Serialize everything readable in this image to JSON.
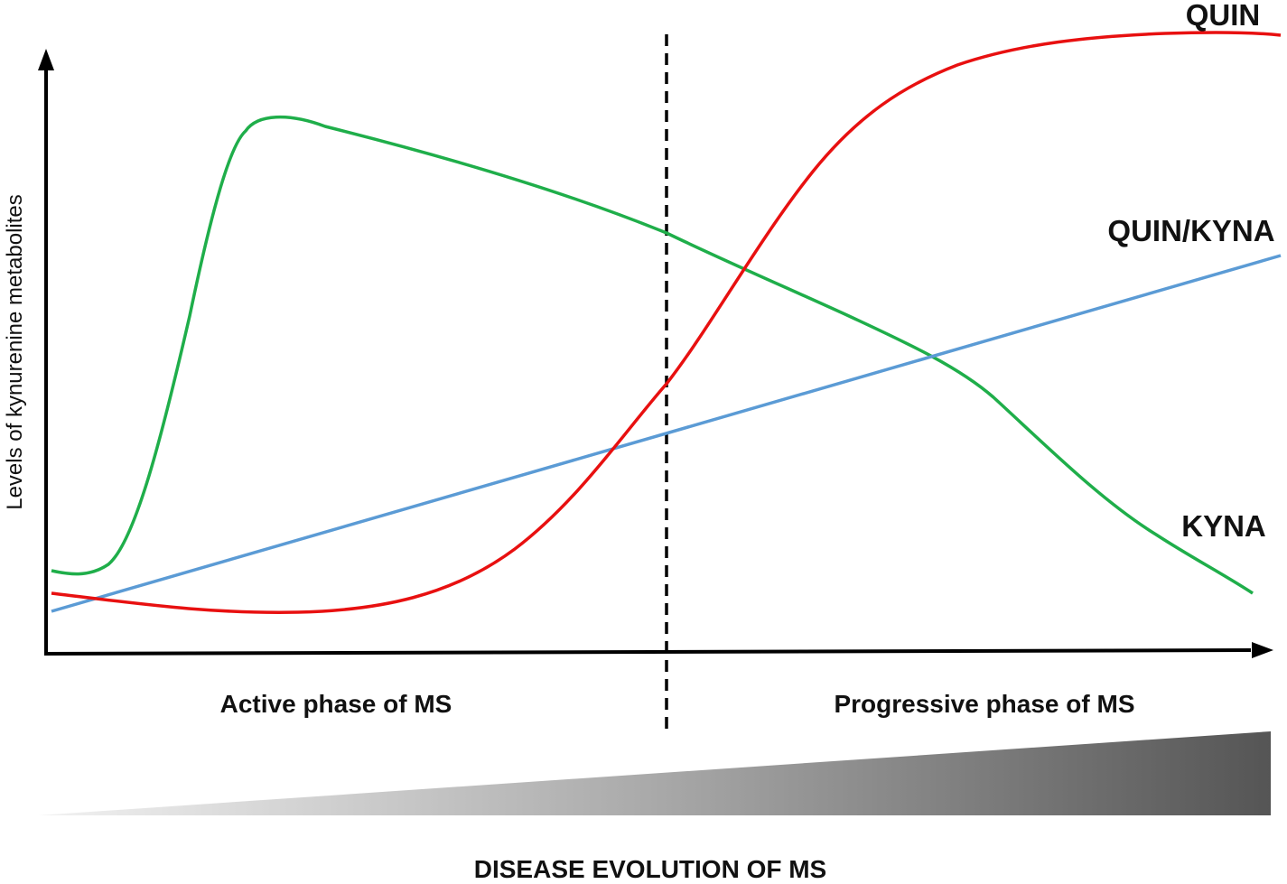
{
  "labels": {
    "y_axis": "Levels of kynurenine metabolites",
    "active_phase": "Active phase of MS",
    "progressive_phase": "Progressive phase of MS",
    "bottom_title": "DISEASE EVOLUTION OF MS"
  },
  "curves": {
    "quin": {
      "label": "QUIN",
      "color": "#e81010"
    },
    "ratio": {
      "label": "QUIN/KYNA",
      "color": "#5b9bd5"
    },
    "kyna": {
      "label": "KYNA",
      "color": "#1fae4a"
    }
  },
  "colors": {
    "axes": "#000000",
    "wedge_light": "#f2f2f2",
    "wedge_dark": "#555555"
  }
}
